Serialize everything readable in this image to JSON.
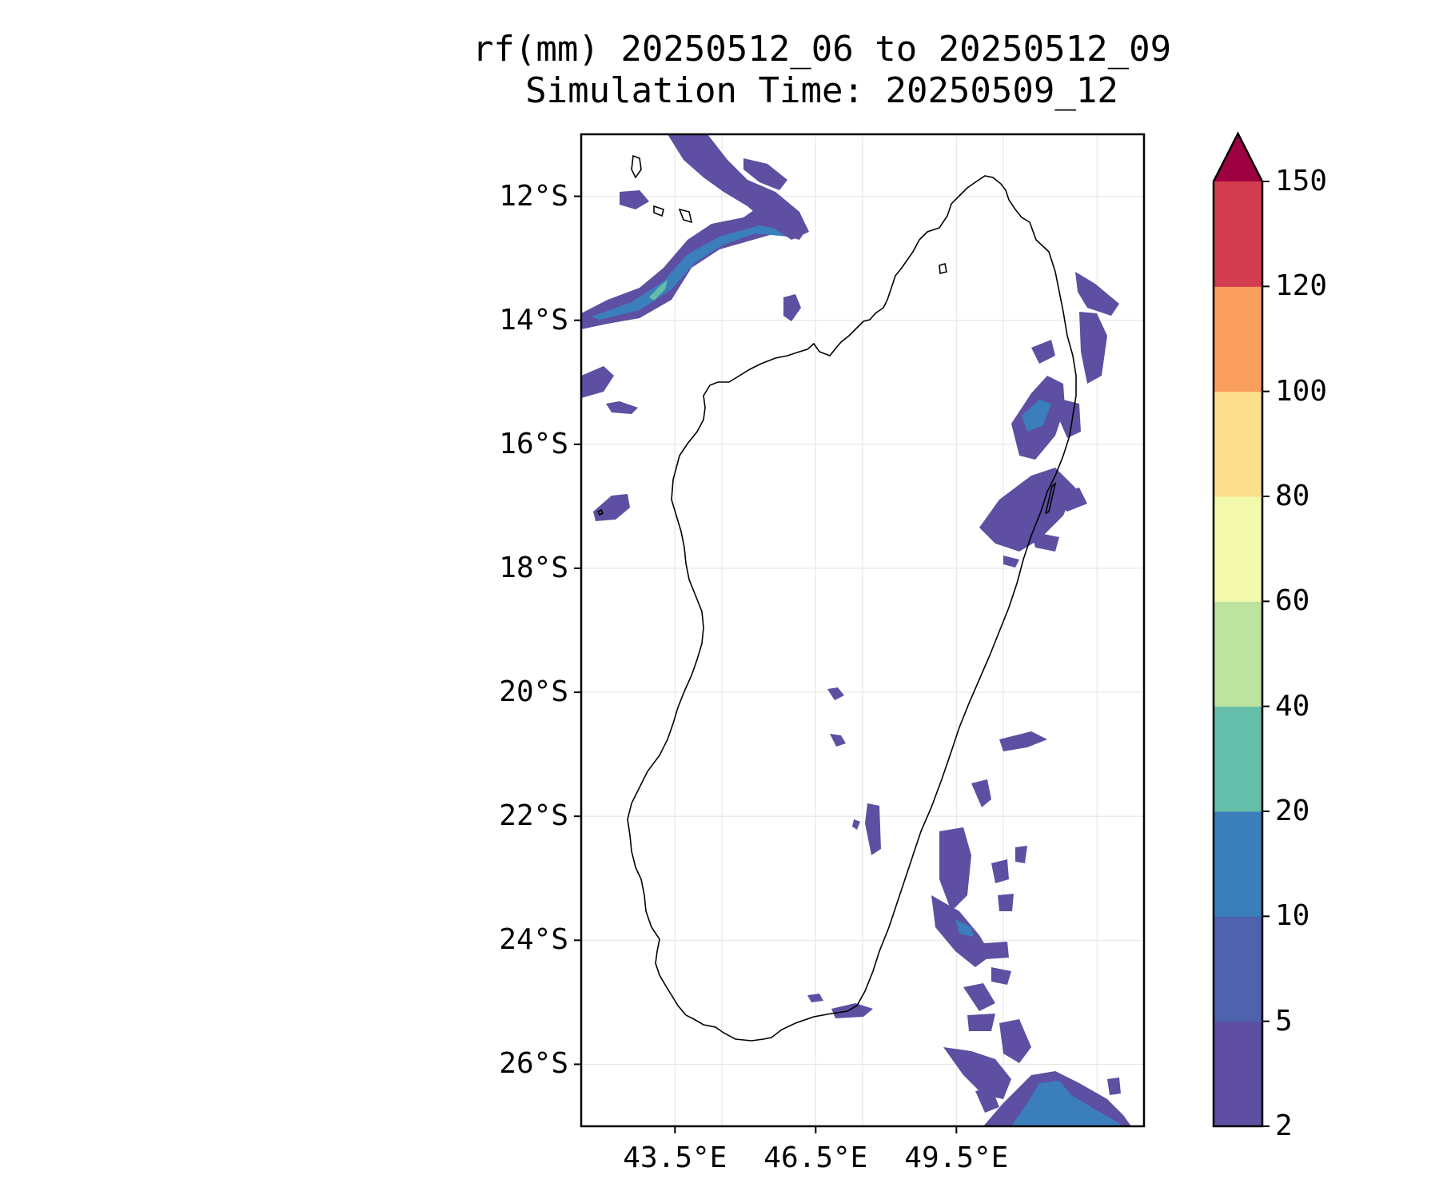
{
  "title": {
    "line1": "rf(mm) 20250512_06 to 20250512_09",
    "line2": "Simulation Time: 20250509_12"
  },
  "map": {
    "projection": "PlateCarree",
    "lon_range": [
      41.5,
      53.5
    ],
    "lat_range": [
      -27.0,
      -11.0
    ],
    "gridlines": true,
    "coastline": "Madagascar",
    "y_ticks": [
      "12°S",
      "14°S",
      "16°S",
      "18°S",
      "20°S",
      "22°S",
      "24°S",
      "26°S"
    ],
    "y_tick_values": [
      -12,
      -14,
      -16,
      -18,
      -20,
      -22,
      -24,
      -26
    ],
    "x_ticks": [
      "43.5°E",
      "46.5°E",
      "49.5°E"
    ],
    "x_tick_values": [
      43.5,
      46.5,
      49.5
    ],
    "extra_grid_lon": [
      44.5,
      47.5,
      50.5,
      52.5
    ]
  },
  "colorbar": {
    "levels": [
      "2",
      "5",
      "10",
      "20",
      "40",
      "60",
      "80",
      "100",
      "120",
      "150"
    ],
    "colors": [
      "#5e4fa2",
      "#4f62ad",
      "#3a7fbb",
      "#65bea9",
      "#bde3a1",
      "#f3f9ad",
      "#fbdf8c",
      "#fa9e5d",
      "#d43d4f"
    ],
    "extend_color": "#9e0142",
    "extend": "max"
  }
}
